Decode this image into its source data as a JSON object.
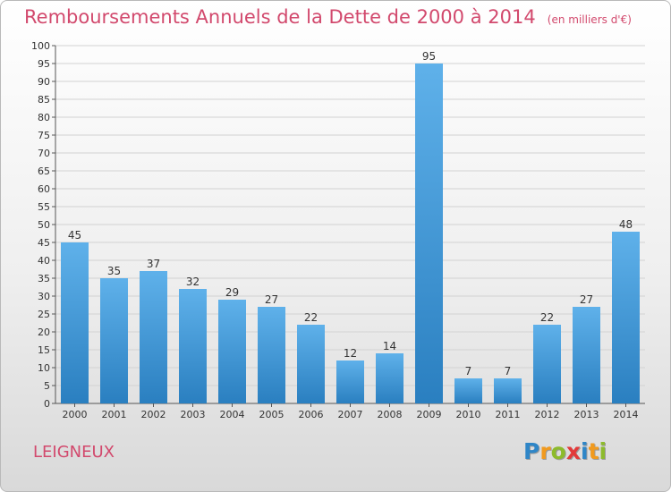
{
  "title": "Remboursements Annuels de la Dette de 2000 à 2014",
  "unit_note": "(en milliers d'€)",
  "commune": "LEIGNEUX",
  "logo": {
    "letters": [
      "P",
      "r",
      "o",
      "x",
      "i",
      "t",
      "i"
    ],
    "colors": [
      "#2f86c7",
      "#f19a1e",
      "#8dbb2c",
      "#e23a3a",
      "#2f86c7",
      "#f19a1e",
      "#8dbb2c"
    ]
  },
  "colors": {
    "title": "#d2496d",
    "bar_light": "#5fb1ea",
    "bar_dark": "#2a7fc0"
  },
  "chart_data": {
    "type": "bar",
    "categories": [
      "2000",
      "2001",
      "2002",
      "2003",
      "2004",
      "2005",
      "2006",
      "2007",
      "2008",
      "2009",
      "2010",
      "2011",
      "2012",
      "2013",
      "2014"
    ],
    "values": [
      45,
      35,
      37,
      32,
      29,
      27,
      22,
      12,
      14,
      95,
      7,
      7,
      22,
      27,
      48
    ],
    "ylim": [
      0,
      100
    ],
    "ytick_step": 5,
    "grid": true,
    "xlabel": "",
    "ylabel": ""
  }
}
